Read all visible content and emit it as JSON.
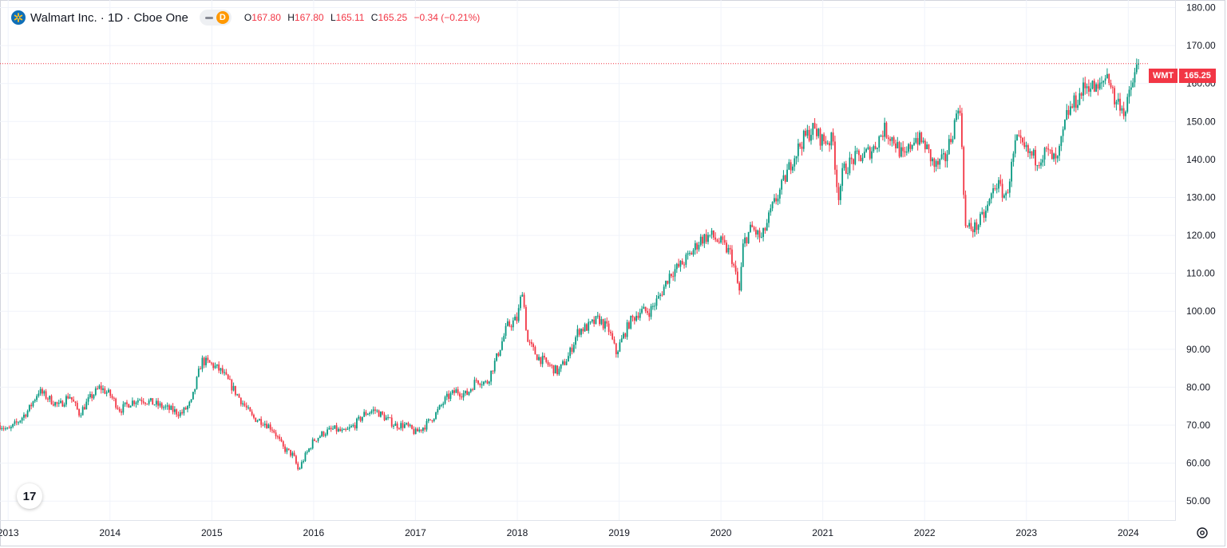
{
  "header": {
    "title": "Walmart Inc. · 1D · Cboe One",
    "badge_letter": "D",
    "ohlc": {
      "o_label": "O",
      "o_value": "167.80",
      "h_label": "H",
      "h_value": "167.80",
      "l_label": "L",
      "l_value": "165.11",
      "c_label": "C",
      "c_value": "165.25",
      "change": "−0.34 (−0.21%)"
    }
  },
  "price_tag": {
    "symbol": "WMT",
    "value": "165.25"
  },
  "colors": {
    "up": "#089981",
    "down": "#f23645",
    "grid": "#f0f3fa",
    "text": "#131722"
  },
  "icons": {
    "logo": "walmart-spark-icon",
    "watermark": "tradingview-logo-icon",
    "settings": "gear-icon"
  },
  "watermark_text": "17",
  "chart_data": {
    "type": "candlestick",
    "title": "Walmart Inc. · 1D · Cboe One",
    "xlabel": "",
    "ylabel": "",
    "ylim": [
      45,
      182
    ],
    "xlim": [
      2012.92,
      2024.46
    ],
    "y_ticks": [
      50,
      60,
      70,
      80,
      90,
      100,
      110,
      120,
      130,
      140,
      150,
      160,
      170,
      180
    ],
    "y_tick_labels": [
      "50.00",
      "60.00",
      "70.00",
      "80.00",
      "90.00",
      "100.00",
      "110.00",
      "120.00",
      "130.00",
      "140.00",
      "150.00",
      "160.00",
      "170.00",
      "180.00"
    ],
    "x_ticks": [
      2013,
      2014,
      2015,
      2016,
      2017,
      2018,
      2019,
      2020,
      2021,
      2022,
      2023,
      2024
    ],
    "x_tick_labels": [
      "2013",
      "2014",
      "2015",
      "2016",
      "2017",
      "2018",
      "2019",
      "2020",
      "2021",
      "2022",
      "2023",
      "2024"
    ],
    "last_price": 165.25,
    "series": [
      {
        "name": "WMT",
        "x": [
          2012.93,
          2013.0,
          2013.1,
          2013.2,
          2013.3,
          2013.4,
          2013.5,
          2013.6,
          2013.7,
          2013.8,
          2013.9,
          2014.0,
          2014.1,
          2014.2,
          2014.3,
          2014.4,
          2014.5,
          2014.6,
          2014.7,
          2014.8,
          2014.9,
          2015.0,
          2015.1,
          2015.2,
          2015.3,
          2015.4,
          2015.5,
          2015.6,
          2015.7,
          2015.8,
          2015.85,
          2015.9,
          2016.0,
          2016.1,
          2016.2,
          2016.3,
          2016.4,
          2016.5,
          2016.6,
          2016.7,
          2016.8,
          2016.9,
          2017.0,
          2017.1,
          2017.2,
          2017.3,
          2017.4,
          2017.5,
          2017.6,
          2017.7,
          2017.8,
          2017.9,
          2018.0,
          2018.05,
          2018.1,
          2018.2,
          2018.3,
          2018.4,
          2018.5,
          2018.6,
          2018.7,
          2018.8,
          2018.9,
          2018.97,
          2019.1,
          2019.2,
          2019.3,
          2019.4,
          2019.5,
          2019.6,
          2019.7,
          2019.8,
          2019.9,
          2020.0,
          2020.1,
          2020.18,
          2020.22,
          2020.3,
          2020.4,
          2020.5,
          2020.6,
          2020.7,
          2020.8,
          2020.9,
          2021.0,
          2021.1,
          2021.15,
          2021.2,
          2021.3,
          2021.4,
          2021.5,
          2021.6,
          2021.7,
          2021.8,
          2021.9,
          2022.0,
          2022.1,
          2022.2,
          2022.3,
          2022.33,
          2022.36,
          2022.4,
          2022.5,
          2022.6,
          2022.7,
          2022.8,
          2022.9,
          2023.0,
          2023.1,
          2023.2,
          2023.3,
          2023.4,
          2023.5,
          2023.6,
          2023.7,
          2023.8,
          2023.87,
          2023.92,
          2023.97,
          2024.02,
          2024.07,
          2024.1
        ],
        "close": [
          70,
          68.5,
          71,
          74,
          79,
          77,
          75,
          78,
          73,
          77,
          80,
          78,
          74,
          76,
          77,
          76,
          75,
          74,
          73,
          76,
          87,
          86,
          84,
          80,
          76,
          72,
          71,
          69,
          64,
          62,
          58,
          61,
          66,
          68,
          69,
          68,
          70,
          73,
          74,
          72,
          70,
          70,
          68,
          70,
          73,
          77,
          79,
          78,
          82,
          81,
          88,
          96,
          98,
          106,
          92,
          88,
          86,
          84,
          88,
          95,
          96,
          98,
          95,
          89,
          97,
          100,
          100,
          104,
          110,
          112,
          115,
          119,
          120,
          118,
          115,
          105,
          118,
          122,
          119,
          127,
          133,
          140,
          145,
          148,
          145,
          145,
          130,
          137,
          140,
          141,
          143,
          148,
          145,
          140,
          146,
          144,
          138,
          140,
          150,
          155,
          148,
          122,
          122,
          126,
          134,
          130,
          145,
          142,
          140,
          142,
          139,
          152,
          156,
          160,
          158,
          163,
          155,
          155,
          152,
          158,
          163,
          165.25
        ]
      }
    ],
    "grid": true,
    "legend": "top-left"
  }
}
